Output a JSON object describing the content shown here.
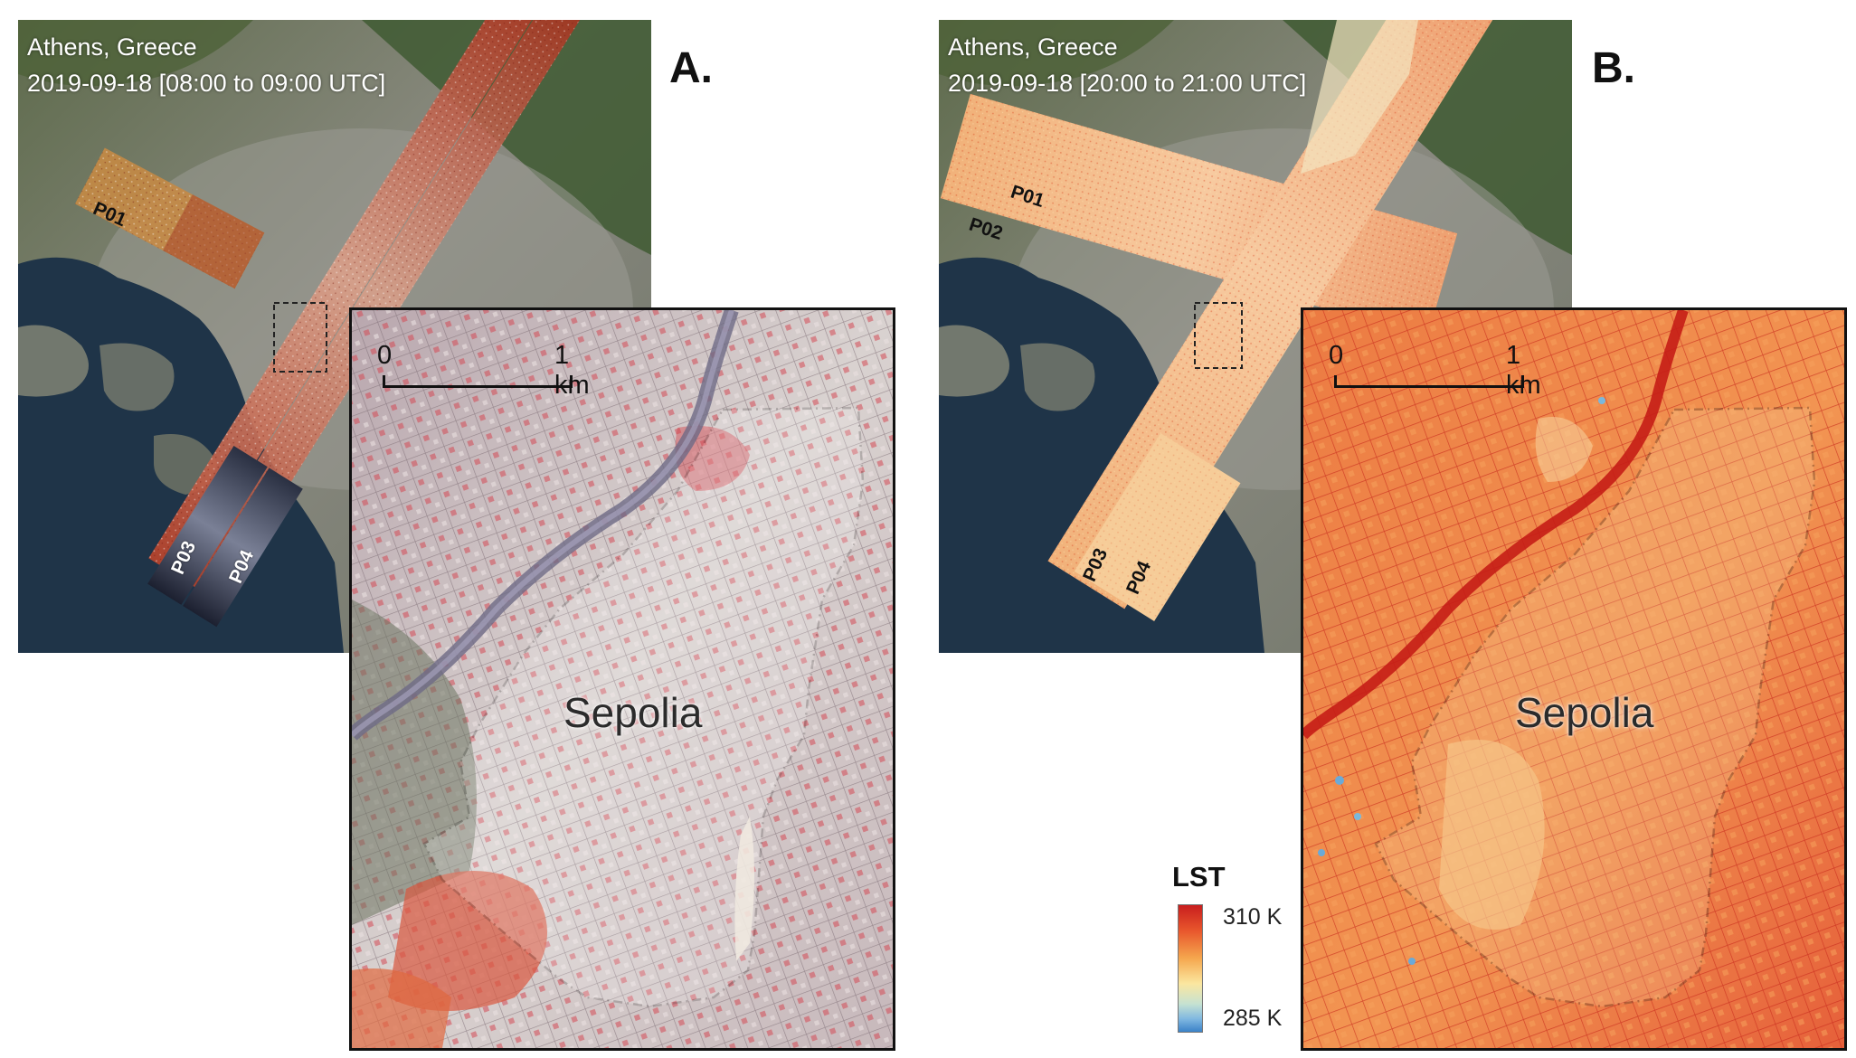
{
  "panel_a": {
    "letter": "A.",
    "location": "Athens, Greece",
    "datetime": "2019-09-18 [08:00 to 09:00 UTC]",
    "tiles": [
      "P01",
      "P03",
      "P04"
    ]
  },
  "panel_b": {
    "letter": "B.",
    "location": "Athens, Greece",
    "datetime": "2019-09-18 [20:00 to 21:00 UTC]",
    "tiles": [
      "P01",
      "P02",
      "P03",
      "P04"
    ]
  },
  "inset": {
    "scale_start": "0",
    "scale_end": "1 km",
    "place_name": "Sepolia"
  },
  "legend": {
    "title": "LST",
    "max_label": "310 K",
    "min_label": "285 K",
    "colors": [
      "#c81e1e",
      "#f5a74e",
      "#fbe7a0",
      "#3b82c8"
    ]
  }
}
